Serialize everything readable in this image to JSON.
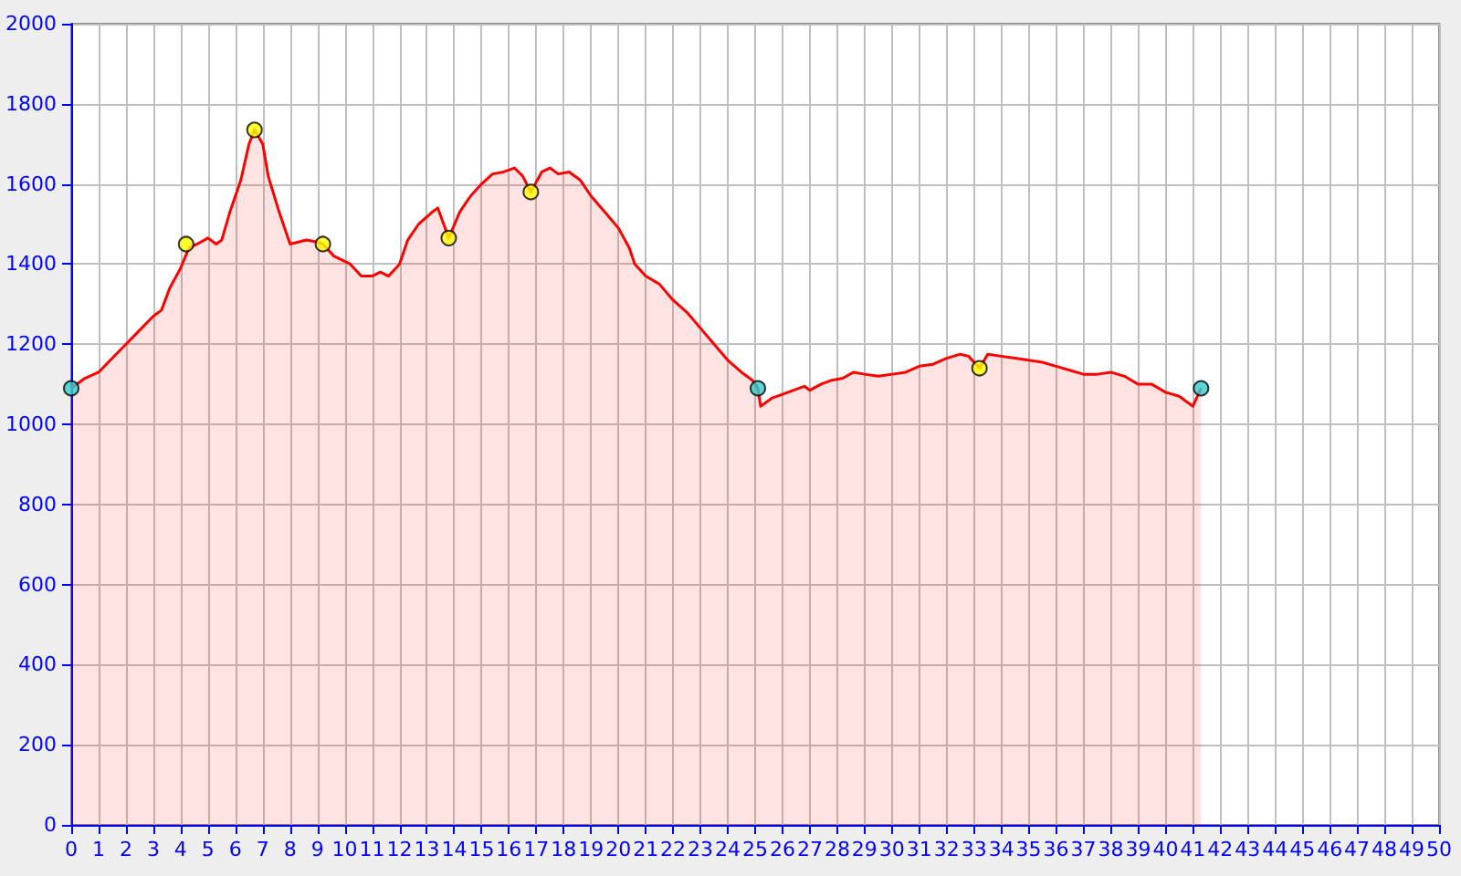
{
  "chart_data": {
    "type": "area",
    "xlim": [
      0,
      50
    ],
    "ylim": [
      0,
      2000
    ],
    "xticks": [
      0,
      1,
      2,
      3,
      4,
      5,
      6,
      7,
      8,
      9,
      10,
      11,
      12,
      13,
      14,
      15,
      16,
      17,
      18,
      19,
      20,
      21,
      22,
      23,
      24,
      25,
      26,
      27,
      28,
      29,
      30,
      31,
      32,
      33,
      34,
      35,
      36,
      37,
      38,
      39,
      40,
      41,
      42,
      43,
      44,
      45,
      46,
      47,
      48,
      49,
      50
    ],
    "yticks": [
      0,
      200,
      400,
      600,
      800,
      1000,
      1200,
      1400,
      1600,
      1800,
      2000
    ],
    "grid": true,
    "series": [
      {
        "color": "#ff0000",
        "marker": "none",
        "x": [
          0,
          0.5,
          1,
          1.5,
          2,
          2.5,
          3,
          3.3,
          3.6,
          4,
          4.3,
          4.6,
          5,
          5.3,
          5.5,
          5.8,
          6.2,
          6.5,
          6.7,
          7,
          7.2,
          7.6,
          8,
          8.3,
          8.6,
          9,
          9.2,
          9.6,
          10.2,
          10.6,
          11,
          11.3,
          11.6,
          12,
          12.3,
          12.7,
          13.2,
          13.4,
          13.8,
          14.2,
          14.6,
          15,
          15.4,
          15.8,
          16.2,
          16.5,
          16.8,
          17.2,
          17.5,
          17.8,
          18.2,
          18.6,
          19,
          19.5,
          20,
          20.4,
          20.6,
          21,
          21.5,
          22,
          22.5,
          23,
          23.5,
          24,
          24.5,
          24.9,
          25.1,
          25.2,
          25.6,
          26,
          26.4,
          26.8,
          27,
          27.4,
          27.8,
          28.2,
          28.6,
          29,
          29.5,
          30,
          30.5,
          31,
          31.5,
          32,
          32.5,
          32.8,
          33.2,
          33.5,
          34,
          34.5,
          35,
          35.5,
          36,
          36.5,
          37,
          37.5,
          38,
          38.5,
          39,
          39.5,
          40,
          40.5,
          41,
          41.3
        ],
        "values": [
          1090,
          1115,
          1130,
          1165,
          1200,
          1235,
          1270,
          1285,
          1340,
          1390,
          1440,
          1450,
          1465,
          1450,
          1460,
          1530,
          1610,
          1700,
          1735,
          1700,
          1620,
          1530,
          1450,
          1455,
          1460,
          1455,
          1450,
          1420,
          1400,
          1370,
          1370,
          1380,
          1370,
          1400,
          1460,
          1500,
          1530,
          1540,
          1465,
          1530,
          1570,
          1600,
          1625,
          1630,
          1640,
          1620,
          1580,
          1630,
          1640,
          1625,
          1630,
          1610,
          1570,
          1530,
          1490,
          1440,
          1400,
          1370,
          1350,
          1310,
          1280,
          1240,
          1200,
          1160,
          1130,
          1110,
          1090,
          1045,
          1065,
          1075,
          1085,
          1095,
          1085,
          1100,
          1110,
          1115,
          1130,
          1125,
          1120,
          1125,
          1130,
          1145,
          1150,
          1165,
          1175,
          1170,
          1140,
          1175,
          1170,
          1165,
          1160,
          1155,
          1145,
          1135,
          1125,
          1125,
          1130,
          1120,
          1100,
          1100,
          1080,
          1070,
          1045,
          1090
        ]
      },
      {
        "type": "scatter",
        "marker": "circle",
        "x": [
          0,
          4.2,
          6.7,
          9.2,
          13.8,
          16.8,
          25.1,
          33.2,
          41.3
        ],
        "values": [
          1090,
          1450,
          1735,
          1450,
          1465,
          1580,
          1090,
          1140,
          1090
        ],
        "colors": [
          "#33cccc",
          "#ffff00",
          "#ffff00",
          "#ffff00",
          "#ffff00",
          "#ffff00",
          "#33cccc",
          "#ffff00",
          "#33cccc"
        ]
      }
    ]
  }
}
